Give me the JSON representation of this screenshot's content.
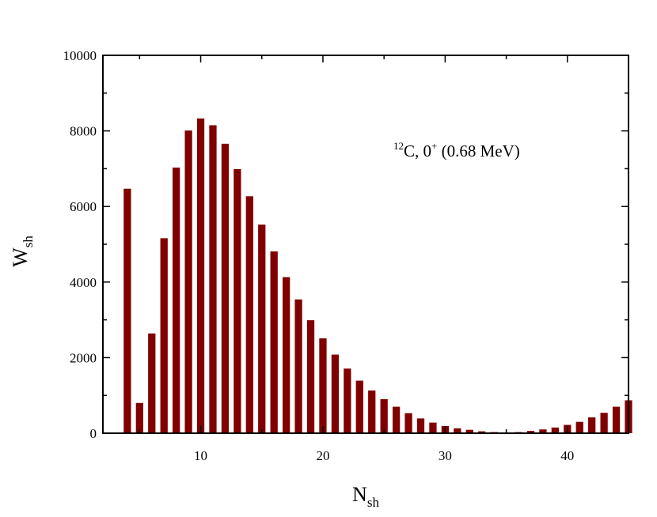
{
  "chart_data": {
    "type": "bar",
    "xlabel": {
      "main": "N",
      "sub": "sh"
    },
    "ylabel": {
      "main": "W",
      "sub": "sh"
    },
    "annotation": {
      "mass": "12",
      "text1": "C, 0",
      "parity": "+",
      "text2": " (0.68 MeV)"
    },
    "xlim": [
      2,
      45
    ],
    "ylim": [
      0,
      10000
    ],
    "xticks": [
      10,
      20,
      30,
      40
    ],
    "xtick_labels": [
      "10",
      "20",
      "30",
      "40"
    ],
    "yticks": [
      0,
      2000,
      4000,
      6000,
      8000,
      10000
    ],
    "ytick_labels": [
      "0",
      "2000",
      "4000",
      "6000",
      "8000",
      "10000"
    ],
    "bar_color": "#800000",
    "x": [
      4,
      5,
      6,
      7,
      8,
      9,
      10,
      11,
      12,
      13,
      14,
      15,
      16,
      17,
      18,
      19,
      20,
      21,
      22,
      23,
      24,
      25,
      26,
      27,
      28,
      29,
      30,
      31,
      32,
      33,
      34,
      35,
      36,
      37,
      38,
      39,
      40,
      41,
      42,
      43,
      44,
      45
    ],
    "values": [
      6470,
      800,
      2640,
      5160,
      7030,
      8010,
      8330,
      8150,
      7660,
      6990,
      6270,
      5520,
      4810,
      4130,
      3540,
      2990,
      2510,
      2080,
      1710,
      1390,
      1130,
      900,
      700,
      530,
      390,
      280,
      190,
      130,
      90,
      50,
      30,
      20,
      30,
      60,
      100,
      150,
      220,
      300,
      420,
      540,
      700,
      870
    ]
  }
}
